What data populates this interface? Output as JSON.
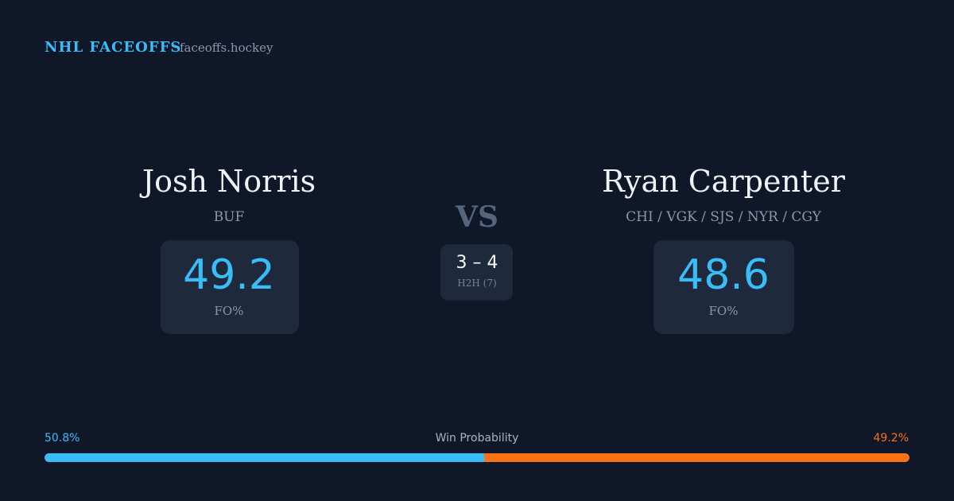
{
  "header": {
    "brand": "NHL FACEOFFS",
    "site": "faceoffs.hockey"
  },
  "players": [
    {
      "name": "Josh Norris",
      "team": "BUF",
      "stat": "49.2",
      "stat_label": "FO%"
    },
    {
      "name": "Ryan Carpenter",
      "team": "CHI / VGK / SJS / NYR / CGY",
      "stat": "48.6",
      "stat_label": "FO%"
    }
  ],
  "vs": "VS",
  "h2h": {
    "score": "3 – 4",
    "label": "H2H (7)"
  },
  "win_probability": {
    "label": "Win Probability",
    "values": [
      50.8,
      49.2
    ],
    "value_labels": [
      "50.8%",
      "49.2%"
    ],
    "colors": [
      "#38bdf8",
      "#f97316"
    ]
  }
}
